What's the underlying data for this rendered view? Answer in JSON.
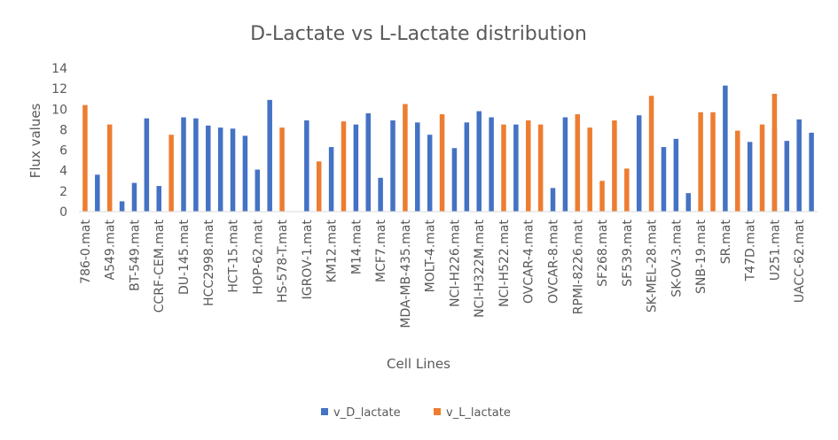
{
  "chart_data": {
    "type": "bar",
    "title": "D-Lactate vs L-Lactate distribution",
    "xlabel": "Cell Lines",
    "ylabel": "Flux  values",
    "ylim": [
      0,
      14
    ],
    "yticks": [
      0,
      2,
      4,
      6,
      8,
      10,
      12,
      14
    ],
    "grid": false,
    "legend_position": "bottom",
    "categories": [
      "786-0.mat",
      "",
      "A549.mat",
      "",
      "BT-549.mat",
      "",
      "CCRF-CEM.mat",
      "",
      "DU-145.mat",
      "",
      "HCC2998.mat",
      "",
      "HCT-15.mat",
      "",
      "HOP-62.mat",
      "",
      "HS-578-T.mat",
      "",
      "IGROV-1.mat",
      "",
      "KM12.mat",
      "",
      "M14.mat",
      "",
      "MCF7.mat",
      "",
      "MDA-MB-435.mat",
      "",
      "MOLT-4.mat",
      "",
      "NCI-H226.mat",
      "",
      "NCI-H322M.mat",
      "",
      "NCI-H522.mat",
      "",
      "OVCAR-4.mat",
      "",
      "OVCAR-8.mat",
      "",
      "RPMI-8226.mat",
      "",
      "SF268.mat",
      "",
      "SF539.mat",
      "",
      "SK-MEL-28.mat",
      "",
      "SK-OV-3.mat",
      "",
      "SNB-19.mat",
      "",
      "SR.mat",
      "",
      "T47D.mat",
      "",
      "U251.mat",
      "",
      "UACC-62.mat",
      ""
    ],
    "series": [
      {
        "name": "v_D_lactate",
        "color": "#4472c4",
        "values": [
          null,
          3.6,
          null,
          1.0,
          2.8,
          9.1,
          2.5,
          null,
          9.2,
          9.1,
          8.4,
          8.2,
          8.1,
          7.4,
          4.1,
          10.9,
          null,
          null,
          8.9,
          null,
          6.3,
          null,
          8.5,
          9.6,
          3.3,
          8.9,
          null,
          8.7,
          7.5,
          null,
          6.2,
          8.7,
          9.8,
          9.2,
          null,
          8.5,
          null,
          null,
          2.3,
          9.2,
          null,
          null,
          null,
          null,
          null,
          9.4,
          null,
          6.3,
          7.1,
          1.8,
          null,
          null,
          12.3,
          null,
          6.8,
          null,
          8.1,
          6.9,
          9.0,
          7.7
        ]
      },
      {
        "name": "v_L_lactate",
        "color": "#ed7d31",
        "values": [
          10.4,
          null,
          8.5,
          null,
          null,
          null,
          null,
          7.5,
          null,
          null,
          null,
          null,
          null,
          null,
          null,
          null,
          8.2,
          null,
          null,
          4.9,
          null,
          8.8,
          null,
          null,
          null,
          null,
          10.5,
          null,
          null,
          9.5,
          null,
          null,
          null,
          null,
          8.5,
          null,
          8.9,
          8.5,
          null,
          null,
          9.5,
          8.2,
          3.0,
          8.9,
          4.2,
          null,
          11.3,
          null,
          null,
          null,
          9.7,
          9.7,
          null,
          7.9,
          null,
          8.5,
          11.5,
          null,
          null,
          null
        ]
      }
    ]
  }
}
